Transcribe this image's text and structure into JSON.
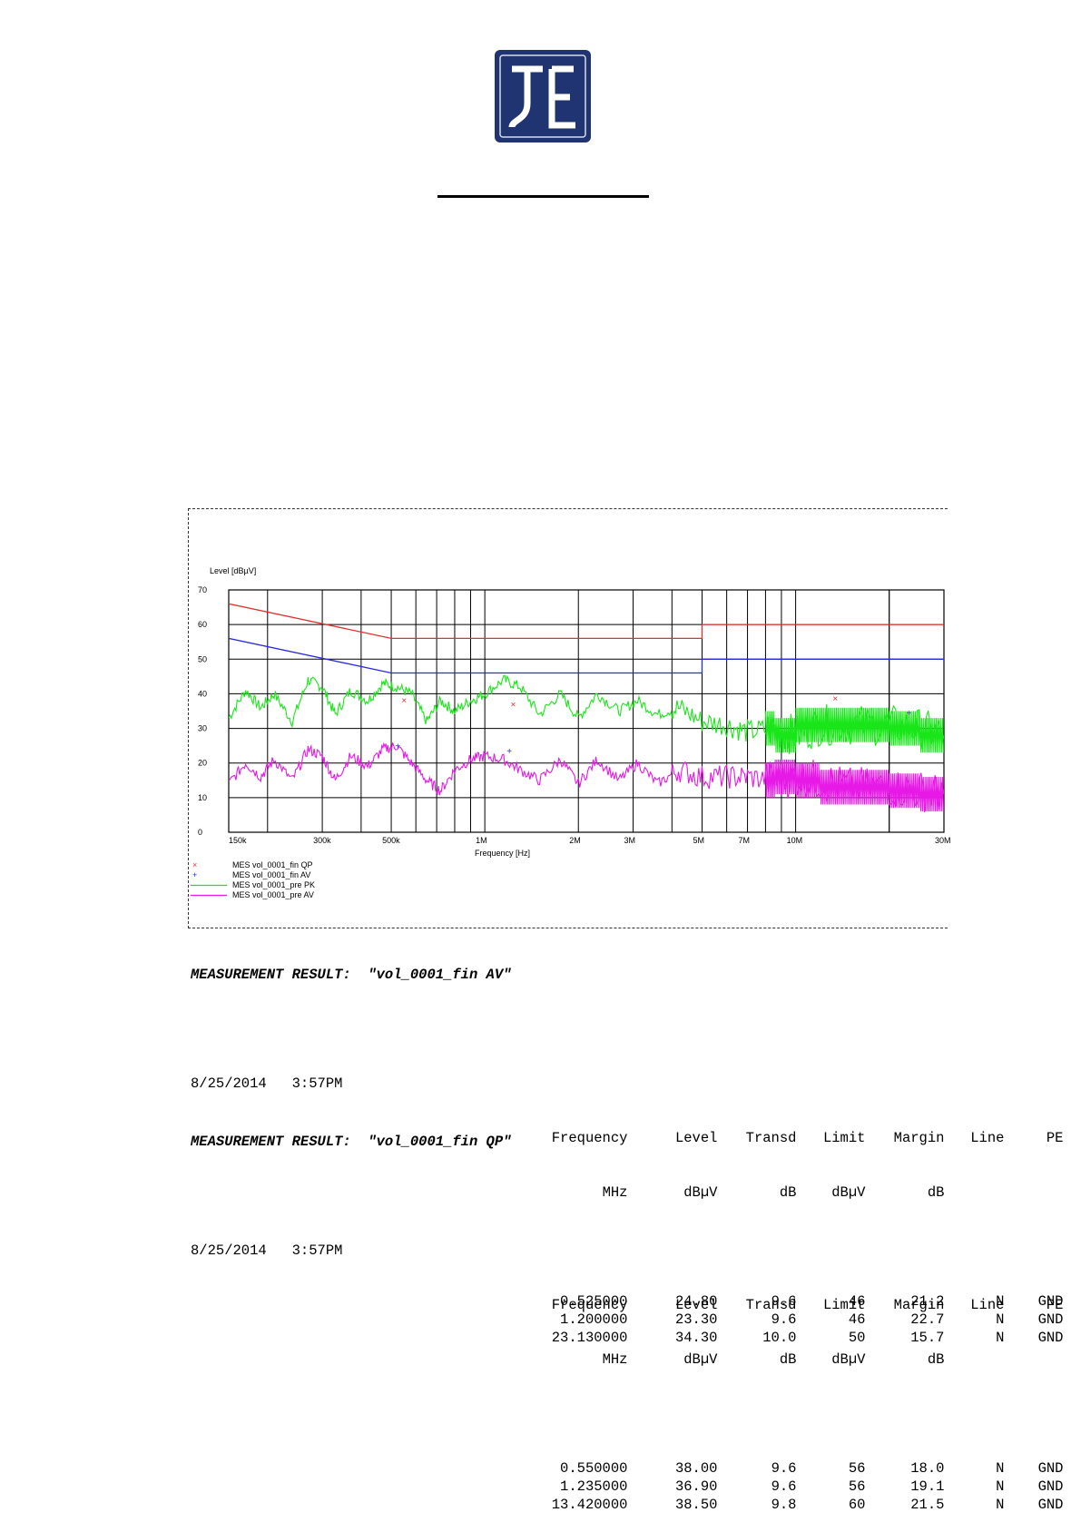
{
  "chart_data": {
    "type": "line",
    "title": "",
    "ylabel": "Level [dBµV]",
    "xlabel": "Frequency [Hz]",
    "x_scale": "log",
    "xlim_hz": [
      150000,
      30000000
    ],
    "ylim": [
      0,
      70
    ],
    "yticks": [
      0,
      10,
      20,
      30,
      40,
      50,
      60,
      70
    ],
    "xtick_labels": [
      {
        "hz": 150000,
        "label": "150k"
      },
      {
        "hz": 300000,
        "label": "300k"
      },
      {
        "hz": 500000,
        "label": "500k"
      },
      {
        "hz": 1000000,
        "label": "1M"
      },
      {
        "hz": 2000000,
        "label": "2M"
      },
      {
        "hz": 3000000,
        "label": "3M"
      },
      {
        "hz": 5000000,
        "label": "5M"
      },
      {
        "hz": 7000000,
        "label": "7M"
      },
      {
        "hz": 10000000,
        "label": "10M"
      },
      {
        "hz": 30000000,
        "label": "30M"
      }
    ],
    "grid": true,
    "limit_lines": [
      {
        "color": "#e03030",
        "points": [
          [
            150000,
            66
          ],
          [
            500000,
            56
          ],
          [
            5000000,
            56
          ],
          [
            5000000,
            60
          ],
          [
            30000000,
            60
          ]
        ]
      },
      {
        "color": "#2a2ae0",
        "points": [
          [
            150000,
            56
          ],
          [
            500000,
            46
          ],
          [
            5000000,
            46
          ],
          [
            5000000,
            50
          ],
          [
            30000000,
            50
          ]
        ]
      }
    ],
    "series": [
      {
        "name": "MES vol_0001_fin QP",
        "marker": "x",
        "color": "#e03030",
        "x": [
          550000,
          1235000,
          13420000
        ],
        "y": [
          38.0,
          36.9,
          38.5
        ]
      },
      {
        "name": "MES vol_0001_fin AV",
        "marker": "+",
        "color": "#2a2ae0",
        "x": [
          525000,
          1200000,
          23130000
        ],
        "y": [
          24.8,
          23.3,
          34.3
        ]
      },
      {
        "name": "MES vol_0001_pre PK",
        "line": true,
        "color": "#19e619",
        "x": [
          150000,
          170000,
          190000,
          210000,
          240000,
          270000,
          300000,
          330000,
          370000,
          420000,
          470000,
          520000,
          580000,
          650000,
          720000,
          800000,
          900000,
          1000000,
          1150000,
          1300000,
          1500000,
          1750000,
          2000000,
          2300000,
          2700000,
          3100000,
          3600000,
          4200000,
          5000000,
          6000000,
          7000000,
          8500000,
          10000000,
          12000000,
          15000000,
          20000000,
          25000000,
          30000000
        ],
        "y": [
          33,
          41,
          36,
          40,
          32,
          44,
          42,
          34,
          41,
          38,
          43,
          42,
          40,
          32,
          38,
          35,
          38,
          40,
          44,
          42,
          34,
          40,
          33,
          40,
          35,
          38,
          34,
          36,
          32,
          31,
          29,
          30,
          28,
          31,
          31,
          31,
          30,
          28
        ]
      },
      {
        "name": "MES vol_0001_pre AV",
        "line": true,
        "color": "#e619e6",
        "x": [
          150000,
          170000,
          190000,
          210000,
          240000,
          270000,
          300000,
          330000,
          370000,
          420000,
          470000,
          520000,
          580000,
          650000,
          720000,
          800000,
          900000,
          1000000,
          1150000,
          1300000,
          1500000,
          1750000,
          2000000,
          2300000,
          2700000,
          3100000,
          3600000,
          4200000,
          5000000,
          6000000,
          7000000,
          8500000,
          10000000,
          12000000,
          15000000,
          20000000,
          25000000,
          30000000
        ],
        "y": [
          14,
          20,
          16,
          21,
          15,
          24,
          22,
          15,
          22,
          19,
          24,
          25,
          20,
          15,
          12,
          18,
          21,
          22,
          21,
          18,
          15,
          21,
          14,
          21,
          15,
          20,
          14,
          18,
          16,
          16,
          16,
          15,
          16,
          15,
          13,
          13,
          12,
          11
        ]
      }
    ]
  },
  "legend": [
    {
      "symbol": "x",
      "label": "MES vol_0001_fin QP"
    },
    {
      "symbol": "+",
      "label": "MES vol_0001_fin AV"
    },
    {
      "symbol": "line-green",
      "label": "MES vol_0001_pre PK"
    },
    {
      "symbol": "line-magenta",
      "label": "MES vol_0001_pre AV"
    }
  ],
  "results": [
    {
      "title": "MEASUREMENT RESULT:  \"vol_0001_fin AV\"",
      "timestamp": "8/25/2014   3:57PM",
      "headers": [
        "Frequency",
        "Level",
        "Transd",
        "Limit",
        "Margin",
        "Line",
        "PE"
      ],
      "units": [
        "MHz",
        "dBµV",
        "dB",
        "dBµV",
        "dB",
        "",
        ""
      ],
      "rows": [
        [
          "0.525000",
          "24.80",
          "9.6",
          "46",
          "21.2",
          "N",
          "GND"
        ],
        [
          "1.200000",
          "23.30",
          "9.6",
          "46",
          "22.7",
          "N",
          "GND"
        ],
        [
          "23.130000",
          "34.30",
          "10.0",
          "50",
          "15.7",
          "N",
          "GND"
        ]
      ]
    },
    {
      "title": "MEASUREMENT RESULT:  \"vol_0001_fin QP\"",
      "timestamp": "8/25/2014   3:57PM",
      "headers": [
        "Frequency",
        "Level",
        "Transd",
        "Limit",
        "Margin",
        "Line",
        "PE"
      ],
      "units": [
        "MHz",
        "dBµV",
        "dB",
        "dBµV",
        "dB",
        "",
        ""
      ],
      "rows": [
        [
          "0.550000",
          "38.00",
          "9.6",
          "56",
          "18.0",
          "N",
          "GND"
        ],
        [
          "1.235000",
          "36.90",
          "9.6",
          "56",
          "19.1",
          "N",
          "GND"
        ],
        [
          "13.420000",
          "38.50",
          "9.8",
          "60",
          "21.5",
          "N",
          "GND"
        ]
      ]
    }
  ]
}
